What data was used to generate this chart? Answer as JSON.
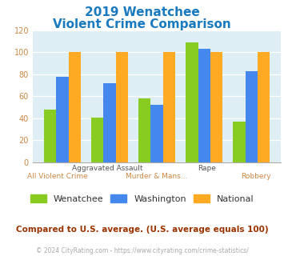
{
  "title_line1": "2019 Wenatchee",
  "title_line2": "Violent Crime Comparison",
  "title_color": "#1a7abf",
  "wenatchee": [
    48,
    41,
    58,
    109,
    37
  ],
  "washington": [
    78,
    72,
    52,
    103,
    83
  ],
  "national": [
    100,
    100,
    100,
    100,
    100
  ],
  "wenatchee_color": "#88cc22",
  "washington_color": "#4488ee",
  "national_color": "#ffaa22",
  "ylim": [
    0,
    120
  ],
  "yticks": [
    0,
    20,
    40,
    60,
    80,
    100,
    120
  ],
  "legend_labels": [
    "Wenatchee",
    "Washington",
    "National"
  ],
  "top_xlabels": [
    "",
    "Aggravated Assault",
    "",
    "Rape",
    ""
  ],
  "bot_xlabels": [
    "All Violent Crime",
    "",
    "Murder & Mans...",
    "",
    "Robbery"
  ],
  "footnote1": "Compared to U.S. average. (U.S. average equals 100)",
  "footnote2": "© 2024 CityRating.com - https://www.cityrating.com/crime-statistics/",
  "footnote1_color": "#993300",
  "footnote2_color": "#aaaaaa",
  "footnote2_link_color": "#4499dd",
  "bg_color": "#ddeef5",
  "grid_color": "#ffffff",
  "ytick_color": "#cc8844",
  "top_xlabel_color": "#555555",
  "bot_xlabel_color": "#cc8844"
}
